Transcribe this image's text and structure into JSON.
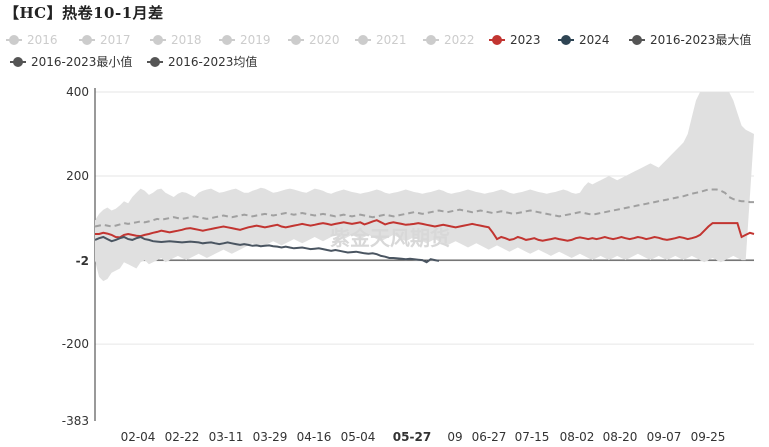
{
  "chart_data": {
    "type": "line",
    "title": "【HC】热卷10-1月差",
    "watermark": "紫金天风期货",
    "legend": [
      {
        "name": "2016",
        "active": false
      },
      {
        "name": "2017",
        "active": false
      },
      {
        "name": "2018",
        "active": false
      },
      {
        "name": "2019",
        "active": false
      },
      {
        "name": "2020",
        "active": false
      },
      {
        "name": "2021",
        "active": false
      },
      {
        "name": "2022",
        "active": false
      },
      {
        "name": "2023",
        "active": true,
        "color": "#c23531"
      },
      {
        "name": "2024",
        "active": true,
        "color": "#2f4554"
      },
      {
        "name": "2016-2023最大值",
        "active": true,
        "color": "#555555"
      },
      {
        "name": "2016-2023最小值",
        "active": true,
        "color": "#555555"
      },
      {
        "name": "2016-2023均值",
        "active": true,
        "color": "#555555"
      }
    ],
    "y_ticks": [
      400,
      200,
      -2,
      -200,
      -383
    ],
    "highlight_y_tick": -2,
    "ylim": [
      -383,
      400
    ],
    "x_ticks": [
      "02-04",
      "02-22",
      "03-11",
      "03-29",
      "04-16",
      "05-04",
      "05-27",
      "09",
      "06-27",
      "07-15",
      "08-02",
      "08-20",
      "09-07",
      "09-25"
    ],
    "highlight_x_tick": "05-27",
    "x_count": 160,
    "series": [
      {
        "name": "2016-2023最大值",
        "values": [
          95,
          110,
          120,
          125,
          118,
          122,
          130,
          140,
          135,
          150,
          160,
          170,
          165,
          155,
          160,
          168,
          170,
          160,
          155,
          150,
          158,
          162,
          160,
          155,
          150,
          160,
          165,
          168,
          170,
          165,
          160,
          162,
          165,
          168,
          170,
          165,
          160,
          160,
          165,
          168,
          172,
          170,
          165,
          160,
          162,
          165,
          168,
          170,
          168,
          165,
          162,
          160,
          165,
          170,
          168,
          165,
          160,
          158,
          162,
          165,
          168,
          165,
          162,
          160,
          158,
          160,
          162,
          165,
          168,
          165,
          160,
          158,
          160,
          162,
          165,
          168,
          165,
          162,
          160,
          158,
          160,
          162,
          165,
          168,
          165,
          160,
          158,
          160,
          162,
          165,
          168,
          165,
          162,
          160,
          158,
          160,
          162,
          165,
          168,
          165,
          160,
          158,
          160,
          162,
          165,
          168,
          165,
          162,
          160,
          158,
          160,
          162,
          165,
          168,
          165,
          160,
          158,
          160,
          175,
          185,
          180,
          185,
          190,
          195,
          200,
          195,
          190,
          195,
          200,
          205,
          210,
          215,
          220,
          225,
          230,
          225,
          220,
          230,
          240,
          250,
          260,
          270,
          280,
          300,
          340,
          380,
          400,
          400,
          400,
          400,
          400,
          400,
          400,
          400,
          380,
          350,
          320,
          310,
          305,
          300
        ]
      },
      {
        "name": "2016-2023最小值",
        "values": [
          -2,
          -40,
          -50,
          -45,
          -30,
          -25,
          -20,
          -5,
          -10,
          -15,
          -20,
          -5,
          0,
          -10,
          -5,
          0,
          5,
          -5,
          0,
          5,
          10,
          5,
          0,
          5,
          10,
          15,
          10,
          5,
          10,
          15,
          20,
          25,
          20,
          15,
          20,
          25,
          30,
          35,
          40,
          35,
          30,
          35,
          40,
          45,
          40,
          35,
          40,
          45,
          50,
          45,
          40,
          45,
          50,
          55,
          50,
          45,
          50,
          55,
          60,
          55,
          50,
          55,
          60,
          55,
          50,
          55,
          60,
          55,
          50,
          45,
          50,
          55,
          60,
          55,
          50,
          45,
          50,
          55,
          50,
          45,
          40,
          45,
          50,
          45,
          40,
          35,
          40,
          45,
          40,
          35,
          30,
          35,
          40,
          35,
          30,
          25,
          30,
          35,
          30,
          25,
          20,
          25,
          30,
          25,
          20,
          15,
          20,
          25,
          20,
          15,
          10,
          15,
          20,
          15,
          10,
          5,
          10,
          15,
          10,
          5,
          0,
          5,
          10,
          5,
          0,
          5,
          10,
          5,
          0,
          5,
          10,
          15,
          10,
          5,
          0,
          5,
          10,
          5,
          0,
          5,
          10,
          5,
          0,
          5,
          10,
          5,
          0,
          -5,
          0,
          5,
          0,
          -5,
          0,
          5,
          10,
          5,
          0,
          0
        ]
      },
      {
        "name": "2016-2023均值",
        "values": [
          80,
          82,
          84,
          82,
          80,
          82,
          85,
          88,
          86,
          88,
          90,
          92,
          90,
          92,
          95,
          98,
          96,
          98,
          100,
          102,
          100,
          98,
          100,
          102,
          104,
          102,
          100,
          98,
          100,
          102,
          104,
          106,
          104,
          102,
          104,
          106,
          108,
          106,
          104,
          106,
          108,
          110,
          108,
          106,
          108,
          110,
          112,
          110,
          108,
          110,
          112,
          110,
          108,
          106,
          108,
          110,
          108,
          106,
          104,
          106,
          108,
          106,
          104,
          106,
          108,
          106,
          104,
          102,
          104,
          106,
          108,
          106,
          104,
          106,
          108,
          110,
          112,
          114,
          112,
          110,
          112,
          114,
          116,
          118,
          116,
          114,
          116,
          118,
          120,
          118,
          116,
          114,
          116,
          118,
          116,
          114,
          112,
          114,
          116,
          114,
          112,
          110,
          112,
          114,
          116,
          118,
          116,
          114,
          112,
          110,
          108,
          106,
          104,
          106,
          108,
          110,
          112,
          114,
          112,
          110,
          108,
          110,
          112,
          114,
          116,
          118,
          120,
          122,
          124,
          126,
          128,
          130,
          132,
          134,
          136,
          138,
          140,
          142,
          144,
          146,
          148,
          150,
          152,
          155,
          158,
          160,
          162,
          165,
          168,
          168,
          168,
          165,
          160,
          150,
          145,
          142,
          140,
          140,
          138,
          138
        ]
      },
      {
        "name": "2023",
        "values": [
          62,
          62,
          65,
          63,
          60,
          55,
          54,
          60,
          62,
          60,
          58,
          57,
          60,
          62,
          65,
          67,
          70,
          68,
          66,
          68,
          70,
          72,
          75,
          76,
          74,
          72,
          70,
          72,
          74,
          76,
          78,
          80,
          78,
          76,
          74,
          72,
          75,
          78,
          80,
          82,
          80,
          78,
          80,
          82,
          84,
          80,
          78,
          80,
          82,
          84,
          86,
          84,
          82,
          84,
          86,
          88,
          86,
          84,
          86,
          88,
          90,
          88,
          86,
          88,
          90,
          85,
          88,
          92,
          95,
          90,
          85,
          88,
          90,
          88,
          86,
          84,
          85,
          86,
          88,
          86,
          84,
          82,
          80,
          82,
          84,
          82,
          80,
          78,
          80,
          82,
          84,
          86,
          84,
          82,
          80,
          78,
          65,
          50,
          55,
          52,
          48,
          50,
          55,
          52,
          48,
          50,
          52,
          48,
          46,
          48,
          50,
          52,
          50,
          48,
          46,
          48,
          52,
          54,
          52,
          50,
          52,
          50,
          52,
          55,
          52,
          50,
          52,
          55,
          52,
          50,
          52,
          55,
          53,
          50,
          52,
          55,
          53,
          50,
          48,
          50,
          52,
          55,
          53,
          50,
          52,
          55,
          60,
          70,
          80,
          88,
          88,
          88,
          88,
          88,
          88,
          88,
          55,
          60,
          65,
          62
        ]
      },
      {
        "name": "2024",
        "values": [
          48,
          52,
          55,
          50,
          45,
          48,
          52,
          55,
          50,
          48,
          52,
          55,
          50,
          48,
          45,
          44,
          43,
          44,
          45,
          44,
          43,
          42,
          43,
          44,
          43,
          42,
          40,
          41,
          42,
          40,
          38,
          40,
          42,
          40,
          38,
          36,
          38,
          36,
          34,
          35,
          33,
          34,
          35,
          33,
          32,
          30,
          32,
          30,
          28,
          29,
          30,
          28,
          26,
          27,
          28,
          26,
          24,
          22,
          24,
          22,
          20,
          18,
          19,
          20,
          18,
          16,
          15,
          16,
          14,
          10,
          8,
          5,
          5,
          4,
          3,
          2,
          3,
          2,
          1,
          0,
          -5,
          2,
          0,
          -2
        ]
      }
    ]
  }
}
